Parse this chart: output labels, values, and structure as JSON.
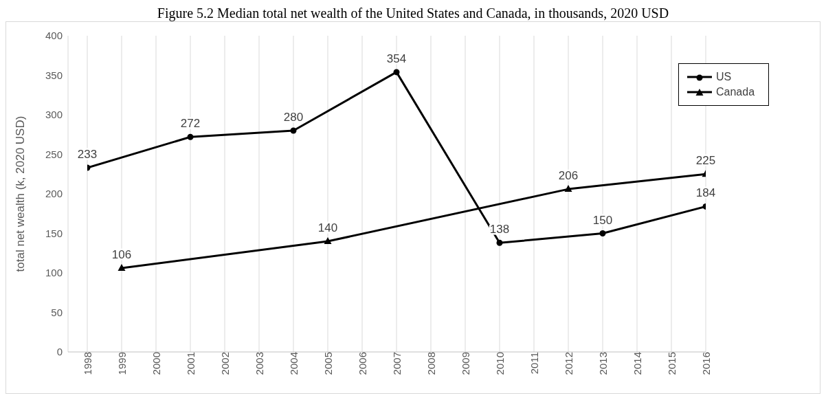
{
  "chart_data": {
    "type": "line",
    "title": "Figure 5.2 Median total net wealth of the United States and Canada, in thousands, 2020 USD",
    "ylabel": "total net wealth (k, 2020 USD)",
    "xlim": [
      1998,
      2016
    ],
    "xticks": [
      1998,
      1999,
      2000,
      2001,
      2002,
      2003,
      2004,
      2005,
      2006,
      2007,
      2008,
      2009,
      2010,
      2011,
      2012,
      2013,
      2014,
      2015,
      2016
    ],
    "ylim": [
      0,
      400
    ],
    "yticks": [
      0,
      50,
      100,
      150,
      200,
      250,
      300,
      350,
      400
    ],
    "grid": "x",
    "legend": "top right",
    "data_labels": true,
    "line_style": "solid",
    "series": [
      {
        "name": "US",
        "color": "#000000",
        "marker": "circle",
        "x": [
          1998,
          2001,
          2004,
          2007,
          2010,
          2013,
          2016
        ],
        "values": [
          233,
          272,
          280,
          354,
          138,
          150,
          184
        ]
      },
      {
        "name": "Canada",
        "color": "#000000",
        "marker": "triangle",
        "x": [
          1999,
          2005,
          2012,
          2016
        ],
        "values": [
          106,
          140,
          206,
          225
        ]
      }
    ]
  }
}
